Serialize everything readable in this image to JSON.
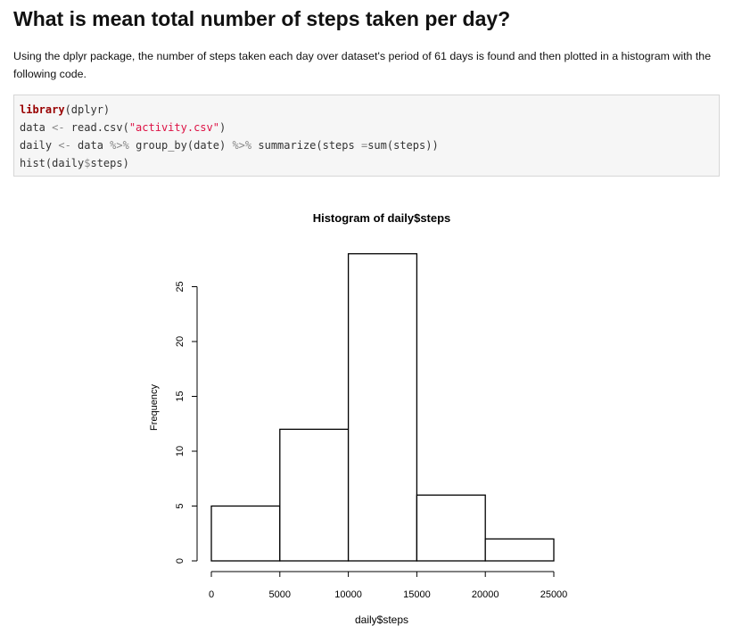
{
  "heading": "What is mean total number of steps taken per day?",
  "paragraph": "Using the dplyr package, the number of steps taken each day over dataset's period of 61 days is found and then plotted in a histogram with the following code.",
  "code": {
    "line1": {
      "kw": "library",
      "rest": "(dplyr)"
    },
    "line2": {
      "a": "data ",
      "op": "<-",
      "b": " read.csv(",
      "str": "\"activity.csv\"",
      "c": ")"
    },
    "line3": {
      "a": "daily ",
      "op1": "<-",
      "b": " data ",
      "op2": "%>%",
      "c": " group_by(date) ",
      "op3": "%>%",
      "d": " summarize(steps ",
      "op4": "=",
      "e": "sum(steps))"
    },
    "line4": {
      "a": "hist(daily",
      "op": "$",
      "b": "steps)"
    }
  },
  "chart_data": {
    "type": "bar",
    "title": "Histogram of daily$steps",
    "xlabel": "daily$steps",
    "ylabel": "Frequency",
    "bins": [
      {
        "from": 0,
        "to": 5000,
        "value": 5
      },
      {
        "from": 5000,
        "to": 10000,
        "value": 12
      },
      {
        "from": 10000,
        "to": 15000,
        "value": 28
      },
      {
        "from": 15000,
        "to": 20000,
        "value": 6
      },
      {
        "from": 20000,
        "to": 25000,
        "value": 2
      }
    ],
    "xticks": [
      "0",
      "5000",
      "10000",
      "15000",
      "20000",
      "25000"
    ],
    "yticks": [
      "0",
      "5",
      "10",
      "15",
      "20",
      "25"
    ],
    "xlim": [
      0,
      25000
    ],
    "ylim": [
      0,
      28
    ],
    "grid": false
  }
}
